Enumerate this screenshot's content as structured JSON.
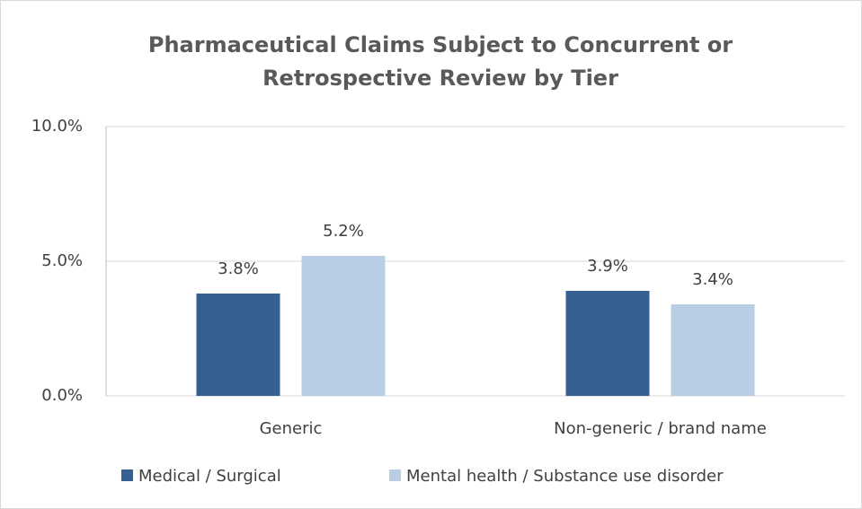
{
  "chart_data": {
    "type": "bar",
    "title": [
      "Pharmaceutical Claims Subject to Concurrent or",
      "Retrospective Review by Tier"
    ],
    "categories": [
      "Generic",
      "Non-generic / brand name"
    ],
    "series": [
      {
        "name": "Medical / Surgical",
        "color": "#366092",
        "values": [
          3.8,
          3.9
        ],
        "value_labels": [
          "3.8%",
          "3.9%"
        ]
      },
      {
        "name": "Mental health / Substance use disorder",
        "color": "#b9cde5",
        "values": [
          5.2,
          3.4
        ],
        "value_labels": [
          "5.2%",
          "3.4%"
        ]
      }
    ],
    "ylim": [
      0,
      10
    ],
    "yticks": [
      {
        "value": 0,
        "label": "0.0%"
      },
      {
        "value": 5,
        "label": "5.0%"
      },
      {
        "value": 10,
        "label": "10.0%"
      }
    ],
    "grid": true,
    "legend": "bottom"
  }
}
